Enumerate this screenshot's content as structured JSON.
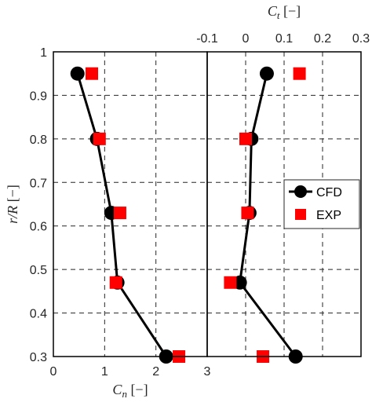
{
  "chart_data": [
    {
      "type": "line",
      "panel": "left",
      "xlabel": "C_n [−]",
      "ylabel": "r/R [−]",
      "xlim": [
        0,
        3
      ],
      "ylim": [
        0.3,
        1.0
      ],
      "xticks": [
        "0",
        "1",
        "2",
        "3"
      ],
      "yticks": [
        "0.3",
        "0.4",
        "0.5",
        "0.6",
        "0.7",
        "0.8",
        "0.9",
        "1"
      ],
      "grid": true,
      "series": [
        {
          "name": "CFD",
          "marker": "circle",
          "line": true,
          "color": "#000000",
          "points": [
            [
              0.47,
              0.95
            ],
            [
              0.85,
              0.8
            ],
            [
              1.13,
              0.63
            ],
            [
              1.25,
              0.47
            ],
            [
              2.2,
              0.3
            ]
          ]
        },
        {
          "name": "EXP",
          "marker": "square",
          "line": false,
          "color": "#ff0000",
          "points": [
            [
              0.75,
              0.95
            ],
            [
              0.9,
              0.8
            ],
            [
              1.3,
              0.63
            ],
            [
              1.22,
              0.47
            ],
            [
              2.45,
              0.3
            ]
          ]
        }
      ]
    },
    {
      "type": "line",
      "panel": "right",
      "xlabel": "C_t [−]",
      "xaxis_position": "top",
      "xlim": [
        -0.1,
        0.3
      ],
      "ylim": [
        0.3,
        1.0
      ],
      "xticks": [
        "-0.1",
        "0",
        "0.1",
        "0.2",
        "0.3"
      ],
      "grid": true,
      "legend": {
        "position": "right",
        "entries": [
          "CFD",
          "EXP"
        ]
      },
      "series": [
        {
          "name": "CFD",
          "marker": "circle",
          "line": true,
          "color": "#000000",
          "points": [
            [
              0.055,
              0.95
            ],
            [
              0.015,
              0.8
            ],
            [
              0.01,
              0.63
            ],
            [
              -0.015,
              0.47
            ],
            [
              0.13,
              0.3
            ]
          ]
        },
        {
          "name": "EXP",
          "marker": "square",
          "line": false,
          "color": "#ff0000",
          "points": [
            [
              0.14,
              0.95
            ],
            [
              0.0,
              0.8
            ],
            [
              0.005,
              0.63
            ],
            [
              -0.04,
              0.47
            ],
            [
              0.045,
              0.3
            ]
          ]
        }
      ]
    }
  ]
}
